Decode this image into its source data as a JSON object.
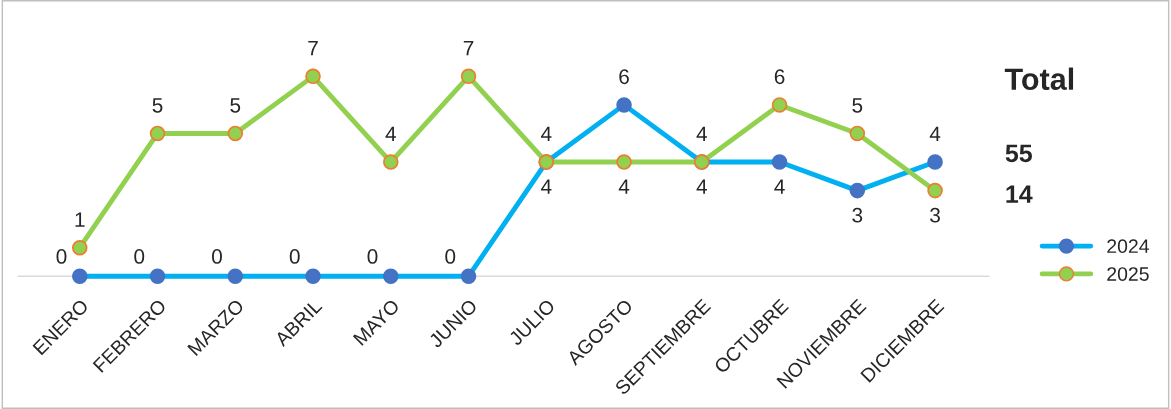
{
  "chart_data": {
    "type": "line",
    "categories": [
      "ENERO",
      "FEBRERO",
      "MARZO",
      "ABRIL",
      "MAYO",
      "JUNIO",
      "JULIO",
      "AGOSTO",
      "SEPTIEMBRE",
      "OCTUBRE",
      "NOVIEMBRE",
      "DICIEMBRE"
    ],
    "series": [
      {
        "name": "2024",
        "color": "#00b0f0",
        "values": [
          0,
          0,
          0,
          0,
          0,
          0,
          4,
          6,
          4,
          4,
          3,
          4
        ]
      },
      {
        "name": "2025",
        "color": "#92d050",
        "values": [
          1,
          5,
          5,
          7,
          4,
          7,
          4,
          4,
          4,
          6,
          5,
          3
        ]
      }
    ],
    "data_labels": true,
    "marker": "circle",
    "line_style": "solid",
    "legend": "right",
    "grid": false,
    "annotations": [
      "Total",
      "55",
      "14"
    ]
  }
}
